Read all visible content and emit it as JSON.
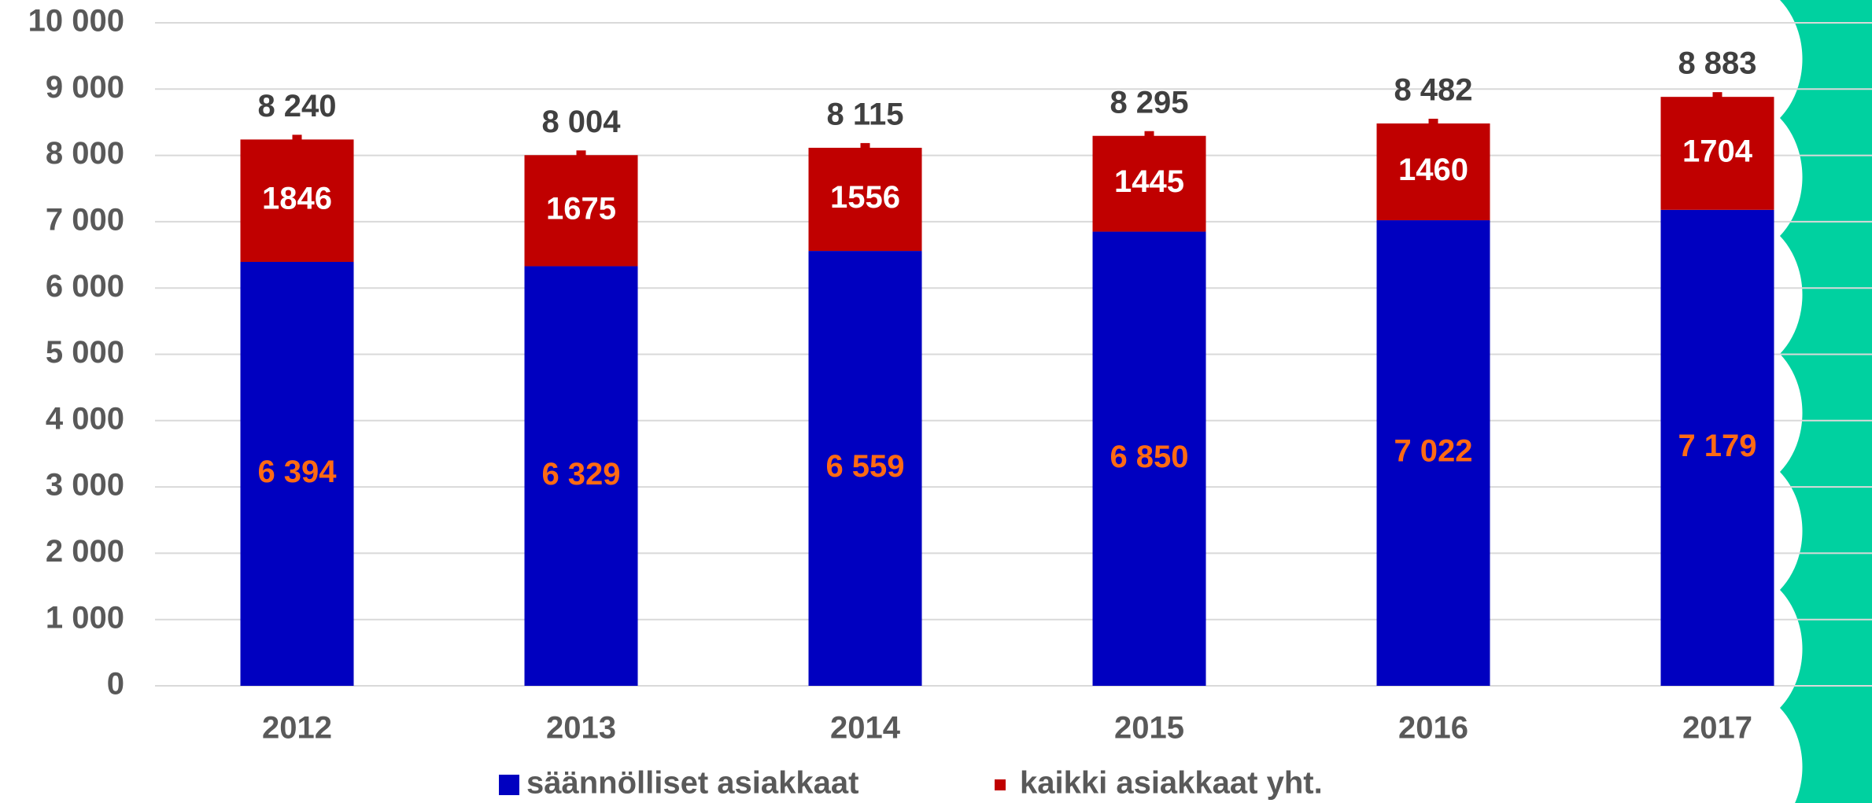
{
  "chart_data": {
    "type": "stacked_bar",
    "categories": [
      "2012",
      "2013",
      "2014",
      "2015",
      "2016",
      "2017"
    ],
    "series": [
      {
        "name": "säännölliset asiakkaat",
        "color": "#0000c0",
        "values": [
          6394,
          6329,
          6559,
          6850,
          7022,
          7179
        ],
        "value_labels": [
          "6 394",
          "6 329",
          "6 559",
          "6 850",
          "7 022",
          "7 179"
        ],
        "label_color": "#ff6a13"
      },
      {
        "color": "#c00000",
        "values": [
          1846,
          1675,
          1556,
          1445,
          1460,
          1704
        ],
        "label_color": "#ffffff"
      }
    ],
    "totals": {
      "name": "kaikki asiakkaat yht.",
      "color": "#c00000",
      "values": [
        8240,
        8004,
        8115,
        8295,
        8482,
        8883
      ],
      "value_labels": [
        "8 240",
        "8 004",
        "8 115",
        "8 295",
        "8 482",
        "8 883"
      ]
    },
    "ylim": [
      0,
      10000
    ],
    "yticks": [
      0,
      {
        "value": 1000,
        "label": "1 000"
      },
      {
        "value": 2000,
        "label": "2 000"
      },
      {
        "value": 3000,
        "label": "3 000"
      },
      {
        "value": 4000,
        "label": "4 000"
      },
      {
        "value": 5000,
        "label": "5 000"
      },
      {
        "value": 6000,
        "label": "6 000"
      },
      {
        "value": 7000,
        "label": "7 000"
      },
      {
        "value": 8000,
        "label": "8 000"
      },
      {
        "value": 9000,
        "label": "9 000"
      },
      {
        "value": 10000,
        "label": "10 000"
      }
    ],
    "grid": true
  }
}
